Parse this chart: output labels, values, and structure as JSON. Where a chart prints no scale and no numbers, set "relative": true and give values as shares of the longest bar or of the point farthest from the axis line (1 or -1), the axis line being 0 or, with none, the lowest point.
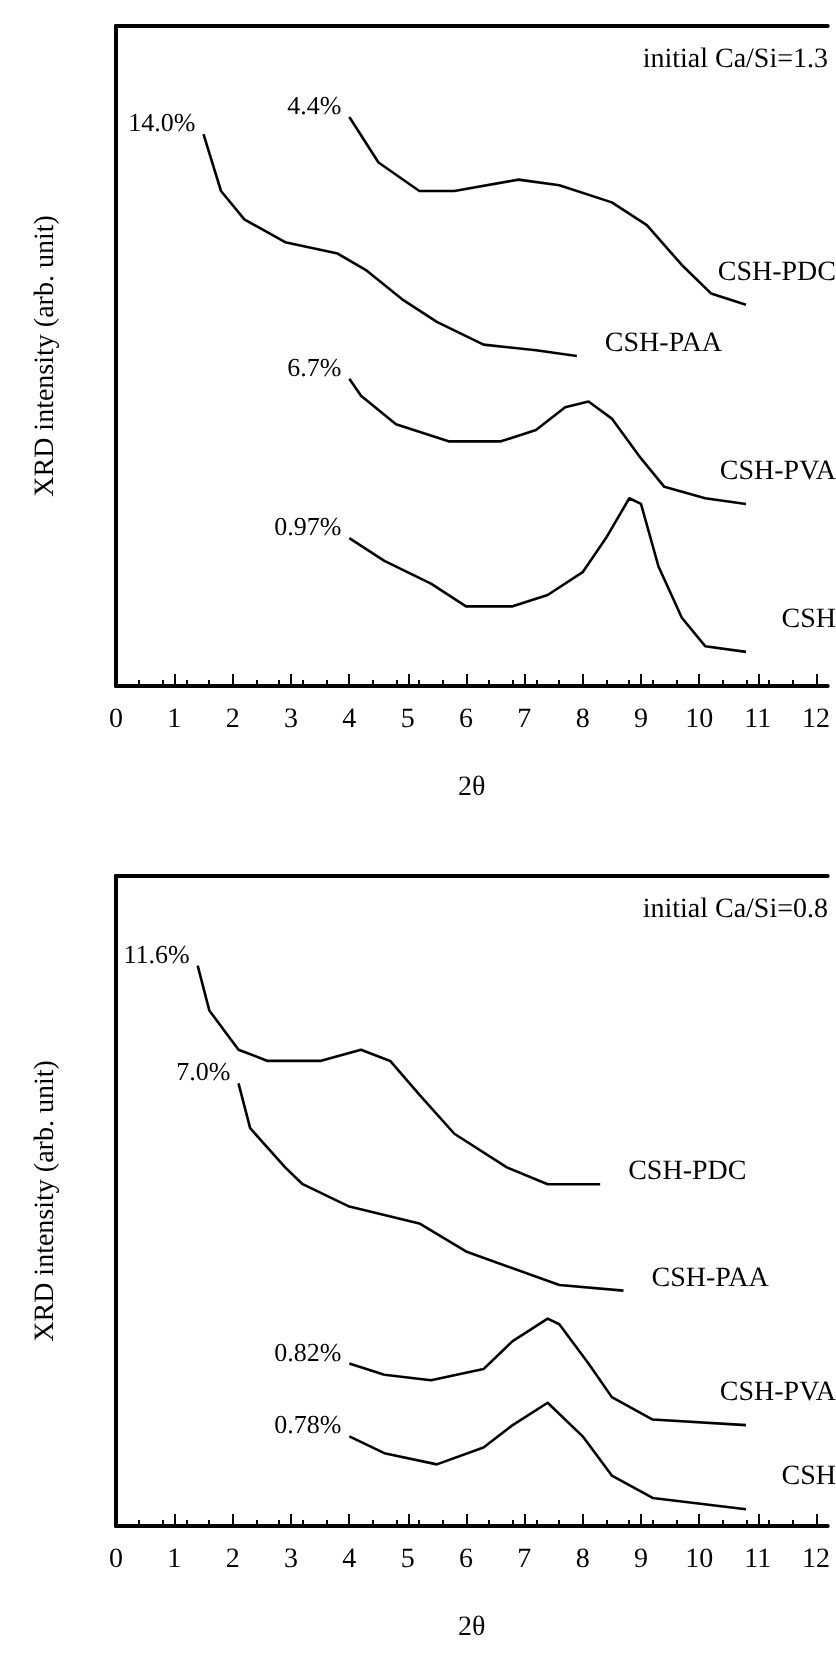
{
  "chart_data": [
    {
      "type": "line",
      "relative": true,
      "xlabel": "2θ",
      "ylabel": "XRD intensity (arb. unit)",
      "xlim": [
        0,
        12.2
      ],
      "xticks": [
        0,
        1,
        2,
        3,
        4,
        5,
        6,
        7,
        8,
        9,
        10,
        11,
        12
      ],
      "annotations": [
        "initial Ca/Si=1.3",
        {
          "text": "4.4%",
          "x": 4.0,
          "y": 1.0
        },
        {
          "text": "14.0%",
          "x": 1.5,
          "y": 0.97
        },
        {
          "text": "6.7%",
          "x": 4.0,
          "y": 0.54
        },
        {
          "text": "0.97%",
          "x": 4.0,
          "y": 0.26
        }
      ],
      "series": [
        {
          "name": "CSH-PDC",
          "color": "#000000",
          "x": [
            4.0,
            4.5,
            5.2,
            5.8,
            6.9,
            7.6,
            8.5,
            9.1,
            9.7,
            10.2,
            10.8
          ],
          "values": [
            1.0,
            0.92,
            0.87,
            0.87,
            0.89,
            0.88,
            0.85,
            0.81,
            0.74,
            0.69,
            0.67
          ]
        },
        {
          "name": "CSH-PAA",
          "color": "#000000",
          "x": [
            1.5,
            1.8,
            2.2,
            2.9,
            3.8,
            4.3,
            4.9,
            5.5,
            6.3,
            7.2,
            7.9
          ],
          "values": [
            0.97,
            0.87,
            0.82,
            0.78,
            0.76,
            0.73,
            0.68,
            0.64,
            0.6,
            0.59,
            0.58
          ]
        },
        {
          "name": "CSH-PVA",
          "color": "#000000",
          "x": [
            4.0,
            4.2,
            4.8,
            5.7,
            6.6,
            7.2,
            7.7,
            8.1,
            8.5,
            9.0,
            9.4,
            10.1,
            10.8
          ],
          "values": [
            0.54,
            0.51,
            0.46,
            0.43,
            0.43,
            0.45,
            0.49,
            0.5,
            0.47,
            0.4,
            0.35,
            0.33,
            0.32
          ]
        },
        {
          "name": "CSH",
          "color": "#000000",
          "x": [
            4.0,
            4.6,
            5.4,
            6.0,
            6.8,
            7.4,
            8.0,
            8.4,
            8.8,
            9.0,
            9.3,
            9.7,
            10.1,
            10.8
          ],
          "values": [
            0.26,
            0.22,
            0.18,
            0.14,
            0.14,
            0.16,
            0.2,
            0.26,
            0.33,
            0.32,
            0.21,
            0.12,
            0.07,
            0.06
          ]
        }
      ]
    },
    {
      "type": "line",
      "relative": true,
      "xlabel": "2θ",
      "ylabel": "XRD intensity (arb. unit)",
      "xlim": [
        0,
        12.2
      ],
      "xticks": [
        0,
        1,
        2,
        3,
        4,
        5,
        6,
        7,
        8,
        9,
        10,
        11,
        12
      ],
      "annotations": [
        "initial Ca/Si=0.8",
        {
          "text": "11.6%",
          "x": 1.4,
          "y": 1.0
        },
        {
          "text": "7.0%",
          "x": 2.1,
          "y": 0.79
        },
        {
          "text": "0.82%",
          "x": 4.0,
          "y": 0.29
        },
        {
          "text": "0.78%",
          "x": 4.0,
          "y": 0.16
        }
      ],
      "series": [
        {
          "name": "CSH-PDC",
          "color": "#000000",
          "x": [
            1.4,
            1.6,
            2.1,
            2.6,
            3.5,
            4.2,
            4.7,
            5.2,
            5.8,
            6.7,
            7.4,
            8.3
          ],
          "values": [
            1.0,
            0.92,
            0.85,
            0.83,
            0.83,
            0.85,
            0.83,
            0.77,
            0.7,
            0.64,
            0.61,
            0.61
          ]
        },
        {
          "name": "CSH-PAA",
          "color": "#000000",
          "x": [
            2.1,
            2.3,
            2.9,
            3.2,
            4.0,
            5.2,
            6.0,
            6.8,
            7.6,
            8.7
          ],
          "values": [
            0.79,
            0.71,
            0.64,
            0.61,
            0.57,
            0.54,
            0.49,
            0.46,
            0.43,
            0.42
          ]
        },
        {
          "name": "CSH-PVA",
          "color": "#000000",
          "x": [
            4.0,
            4.6,
            5.4,
            6.3,
            6.8,
            7.4,
            7.6,
            8.1,
            8.5,
            9.2,
            10.8
          ],
          "values": [
            0.29,
            0.27,
            0.26,
            0.28,
            0.33,
            0.37,
            0.36,
            0.29,
            0.23,
            0.19,
            0.18
          ]
        },
        {
          "name": "CSH",
          "color": "#000000",
          "x": [
            4.0,
            4.6,
            5.5,
            6.3,
            6.8,
            7.4,
            8.0,
            8.5,
            9.2,
            10.8
          ],
          "values": [
            0.16,
            0.13,
            0.11,
            0.14,
            0.18,
            0.22,
            0.16,
            0.09,
            0.05,
            0.03
          ]
        }
      ]
    }
  ]
}
